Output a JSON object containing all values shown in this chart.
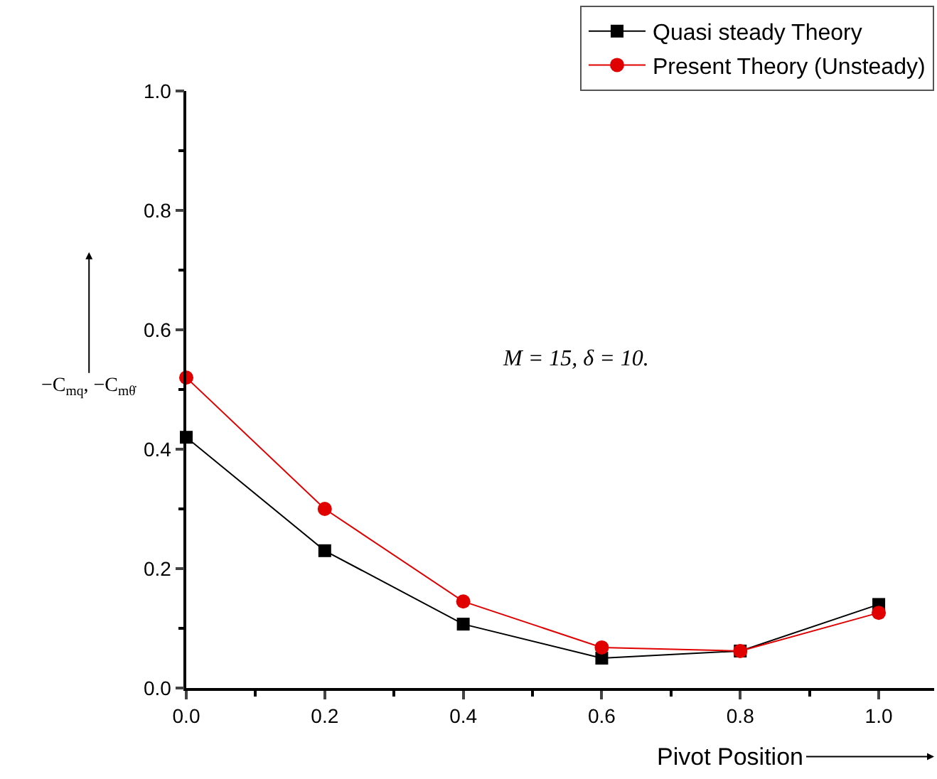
{
  "chart_data": {
    "type": "line",
    "xlabel": "Pivot Position",
    "ylabel": "−C$_{mq}$, −C$_{mθ̇}$",
    "annotations": [
      "M = 15, δ = 10."
    ],
    "x": [
      0.0,
      0.2,
      0.4,
      0.6,
      0.8,
      1.0
    ],
    "series": [
      {
        "name": "Quasi steady Theory",
        "color": "#000000",
        "marker": "square",
        "values": [
          0.42,
          0.23,
          0.107,
          0.05,
          0.062,
          0.14
        ]
      },
      {
        "name": "Present Theory (Unsteady)",
        "color": "#e00000",
        "marker": "circle",
        "values": [
          0.52,
          0.3,
          0.145,
          0.068,
          0.062,
          0.126
        ]
      }
    ],
    "xlim": [
      0,
      1.08
    ],
    "xticks": [
      {
        "value": 0.0,
        "label": "0.0"
      },
      {
        "value": 0.2,
        "label": "0.2"
      },
      {
        "value": 0.4,
        "label": "0.4"
      },
      {
        "value": 0.6,
        "label": "0.6"
      },
      {
        "value": 0.8,
        "label": "0.8"
      },
      {
        "value": 1.0,
        "label": "1.0"
      }
    ],
    "ylim": [
      0,
      1.0
    ],
    "yticks": [
      {
        "value": 0.0,
        "label": "0.0"
      },
      {
        "value": 0.2,
        "label": "0.2"
      },
      {
        "value": 0.4,
        "label": "0.4"
      },
      {
        "value": 0.6,
        "label": "0.6"
      },
      {
        "value": 0.8,
        "label": "0.8"
      },
      {
        "value": 1.0,
        "label": "1.0"
      }
    ],
    "grid": false,
    "legend": "top right",
    "line_style": "solid"
  }
}
